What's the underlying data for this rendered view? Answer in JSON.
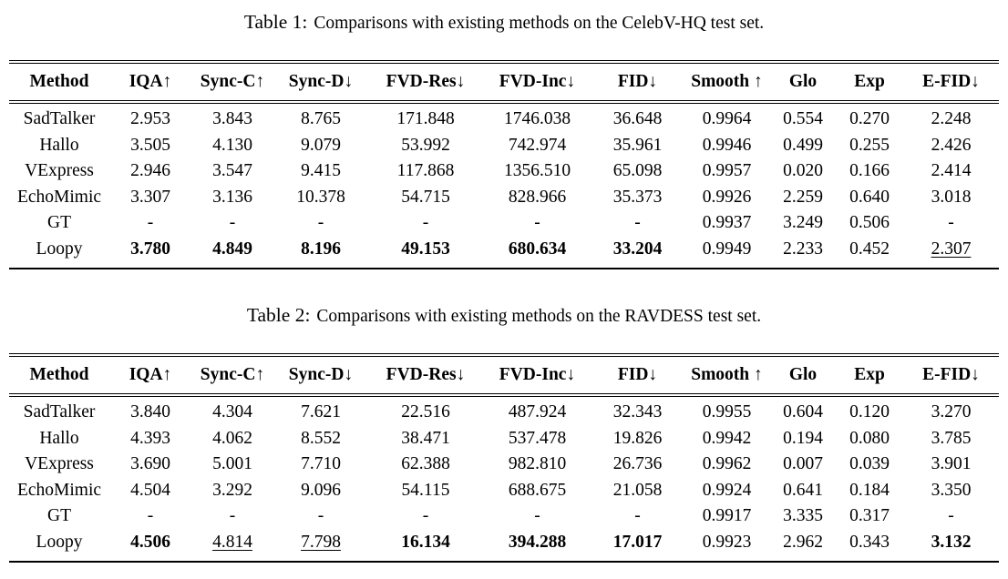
{
  "page": {
    "background": "#ffffff",
    "text_color": "#000000"
  },
  "tables": [
    {
      "caption_label": "Table 1:",
      "caption_text": "Comparisons with existing methods on the CelebV-HQ test set.",
      "columns": [
        "Method",
        "IQA↑",
        "Sync-C↑",
        "Sync-D↓",
        "FVD-Res↓",
        "FVD-Inc↓",
        "FID↓",
        "Smooth ↑",
        "Glo",
        "Exp",
        "E-FID↓"
      ],
      "rows": [
        {
          "method": "SadTalker",
          "values": [
            "2.953",
            "3.843",
            "8.765",
            "171.848",
            "1746.038",
            "36.648",
            "0.9964",
            "0.554",
            "0.270",
            "2.248"
          ]
        },
        {
          "method": "Hallo",
          "values": [
            "3.505",
            "4.130",
            "9.079",
            "53.992",
            "742.974",
            "35.961",
            "0.9946",
            "0.499",
            "0.255",
            "2.426"
          ]
        },
        {
          "method": "VExpress",
          "values": [
            "2.946",
            "3.547",
            "9.415",
            "117.868",
            "1356.510",
            "65.098",
            "0.9957",
            "0.020",
            "0.166",
            "2.414"
          ]
        },
        {
          "method": "EchoMimic",
          "values": [
            "3.307",
            "3.136",
            "10.378",
            "54.715",
            "828.966",
            "35.373",
            "0.9926",
            "2.259",
            "0.640",
            "3.018"
          ]
        },
        {
          "method": "GT",
          "values": [
            "-",
            "-",
            "-",
            "-",
            "-",
            "-",
            "0.9937",
            "3.249",
            "0.506",
            "-"
          ]
        },
        {
          "method": "Loopy",
          "values": [
            "3.780",
            "4.849",
            "8.196",
            "49.153",
            "680.634",
            "33.204",
            "0.9949",
            "2.233",
            "0.452",
            "2.307"
          ],
          "emphasis": [
            "b",
            "b",
            "b",
            "b",
            "b",
            "b",
            "",
            "",
            "",
            "u"
          ]
        }
      ]
    },
    {
      "caption_label": "Table 2:",
      "caption_text": "Comparisons with existing methods on the RAVDESS test set.",
      "columns": [
        "Method",
        "IQA↑",
        "Sync-C↑",
        "Sync-D↓",
        "FVD-Res↓",
        "FVD-Inc↓",
        "FID↓",
        "Smooth ↑",
        "Glo",
        "Exp",
        "E-FID↓"
      ],
      "rows": [
        {
          "method": "SadTalker",
          "values": [
            "3.840",
            "4.304",
            "7.621",
            "22.516",
            "487.924",
            "32.343",
            "0.9955",
            "0.604",
            "0.120",
            "3.270"
          ]
        },
        {
          "method": "Hallo",
          "values": [
            "4.393",
            "4.062",
            "8.552",
            "38.471",
            "537.478",
            "19.826",
            "0.9942",
            "0.194",
            "0.080",
            "3.785"
          ]
        },
        {
          "method": "VExpress",
          "values": [
            "3.690",
            "5.001",
            "7.710",
            "62.388",
            "982.810",
            "26.736",
            "0.9962",
            "0.007",
            "0.039",
            "3.901"
          ]
        },
        {
          "method": "EchoMimic",
          "values": [
            "4.504",
            "3.292",
            "9.096",
            "54.115",
            "688.675",
            "21.058",
            "0.9924",
            "0.641",
            "0.184",
            "3.350"
          ]
        },
        {
          "method": "GT",
          "values": [
            "-",
            "-",
            "-",
            "-",
            "-",
            "-",
            "0.9917",
            "3.335",
            "0.317",
            "-"
          ]
        },
        {
          "method": "Loopy",
          "values": [
            "4.506",
            "4.814",
            "7.798",
            "16.134",
            "394.288",
            "17.017",
            "0.9923",
            "2.962",
            "0.343",
            "3.132"
          ],
          "emphasis": [
            "b",
            "u",
            "u",
            "b",
            "b",
            "b",
            "",
            "",
            "",
            "b"
          ]
        }
      ]
    }
  ]
}
